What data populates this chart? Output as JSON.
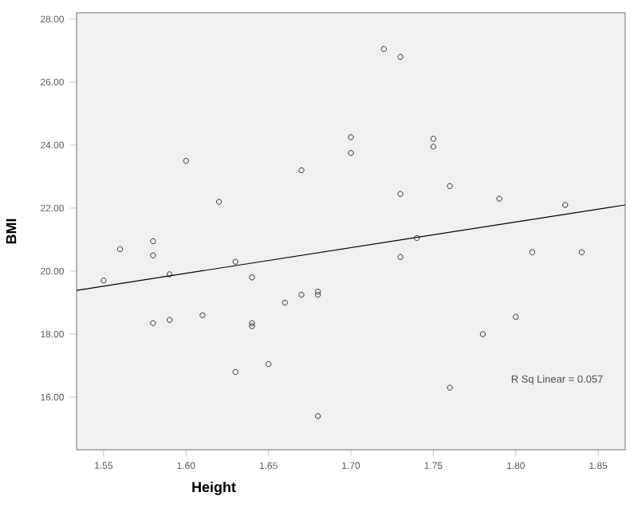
{
  "chart_data": {
    "type": "scatter",
    "xlabel": "Height",
    "ylabel": "BMI",
    "xlim": [
      1.5336,
      1.8664
    ],
    "ylim": [
      14.33,
      28.2
    ],
    "xticks": [
      1.55,
      {
        "value": 1.6,
        "label": "1.60"
      },
      {
        "value": 1.65,
        "label": "1.65"
      },
      {
        "value": 1.7,
        "label": "1.70"
      },
      1.75,
      {
        "value": 1.8,
        "label": "1.80"
      },
      1.85
    ],
    "yticks": [
      {
        "value": 16,
        "label": "16.00"
      },
      {
        "value": 18,
        "label": "18.00"
      },
      {
        "value": 20,
        "label": "20.00"
      },
      {
        "value": 22,
        "label": "22.00"
      },
      {
        "value": 24,
        "label": "24.00"
      },
      {
        "value": 26,
        "label": "26.00"
      },
      {
        "value": 28,
        "label": "28.00"
      }
    ],
    "marker": "circle",
    "grid": false,
    "series": [
      {
        "color": "#000000",
        "x": [
          1.55,
          1.56,
          1.58,
          1.58,
          1.58,
          1.59,
          1.59,
          1.6,
          1.61,
          1.62,
          1.63,
          1.63,
          1.64,
          1.64,
          1.64,
          1.65,
          1.66,
          1.67,
          1.67,
          1.68,
          1.68,
          1.68,
          1.7,
          1.7,
          1.72,
          1.73,
          1.73,
          1.73,
          1.74,
          1.75,
          1.75,
          1.76,
          1.76,
          1.78,
          1.79,
          1.8,
          1.81,
          1.83,
          1.84
        ],
        "values": [
          19.7,
          20.7,
          20.95,
          20.5,
          18.35,
          19.9,
          18.45,
          23.5,
          18.6,
          22.2,
          20.3,
          16.8,
          19.8,
          18.35,
          18.25,
          17.05,
          19.0,
          23.2,
          19.25,
          19.35,
          19.25,
          15.4,
          24.25,
          23.75,
          27.05,
          26.8,
          22.45,
          20.45,
          21.05,
          24.2,
          23.95,
          22.7,
          16.3,
          18.0,
          22.3,
          18.55,
          20.6,
          22.1,
          20.6
        ]
      },
      {
        "type": "line",
        "color": "#000000",
        "marker": "none",
        "x": [
          1.5336,
          1.8664
        ],
        "values": [
          19.39,
          22.1
        ]
      }
    ],
    "annotations": [
      "R Sq Linear = 0.057"
    ]
  }
}
